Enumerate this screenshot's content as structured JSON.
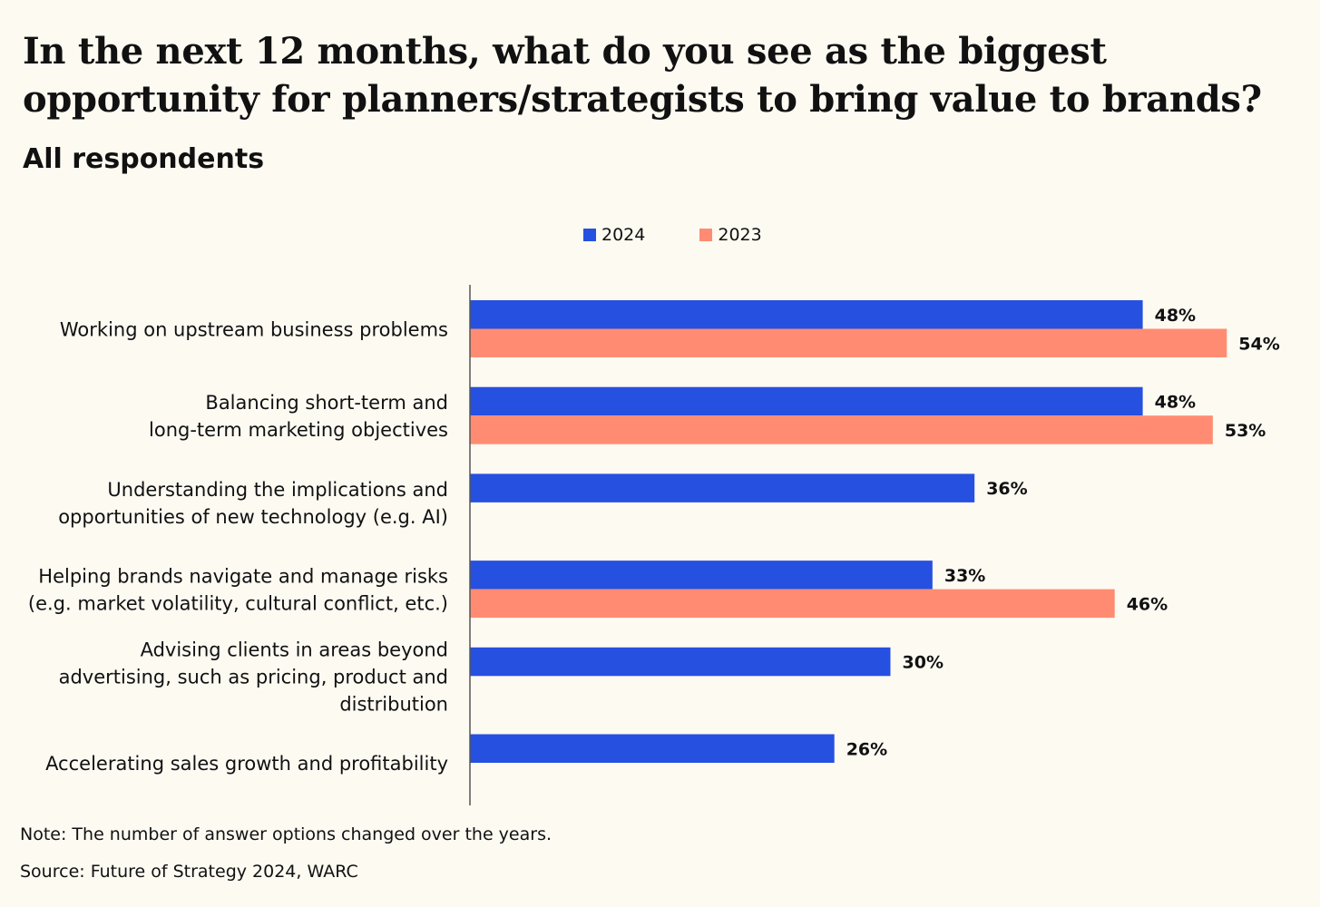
{
  "title": "In the next 12 months, what do you see as the biggest opportunity for planners/strategists to bring value to brands?",
  "subtitle": "All respondents",
  "note": "Note: The number of answer options changed over the years.",
  "source": "Source: Future of Strategy 2024, WARC",
  "colors": {
    "2024": "#2550e0",
    "2023": "#ff8c72",
    "axis": "#555555"
  },
  "chart_data": {
    "type": "bar",
    "orientation": "horizontal",
    "title": "In the next 12 months, what do you see as the biggest opportunity for planners/strategists to bring value to brands?",
    "subtitle": "All respondents",
    "legend_position": "top-center",
    "categories": [
      [
        "Working on upstream business problems"
      ],
      [
        "Balancing short-term and",
        "long-term marketing objectives"
      ],
      [
        "Understanding the implications and",
        "opportunities of new technology (e.g. AI)"
      ],
      [
        "Helping brands navigate and manage risks",
        "(e.g. market volatility, cultural conflict, etc.)"
      ],
      [
        "Advising clients in areas beyond",
        "advertising, such as pricing, product and",
        "distribution"
      ],
      [
        "Accelerating sales growth and profitability"
      ]
    ],
    "series": [
      {
        "name": "2024",
        "values": [
          48,
          48,
          36,
          33,
          30,
          26
        ]
      },
      {
        "name": "2023",
        "values": [
          54,
          53,
          null,
          46,
          null,
          null
        ]
      }
    ],
    "xlim": [
      0,
      60
    ],
    "value_suffix": "%",
    "grid": false
  }
}
